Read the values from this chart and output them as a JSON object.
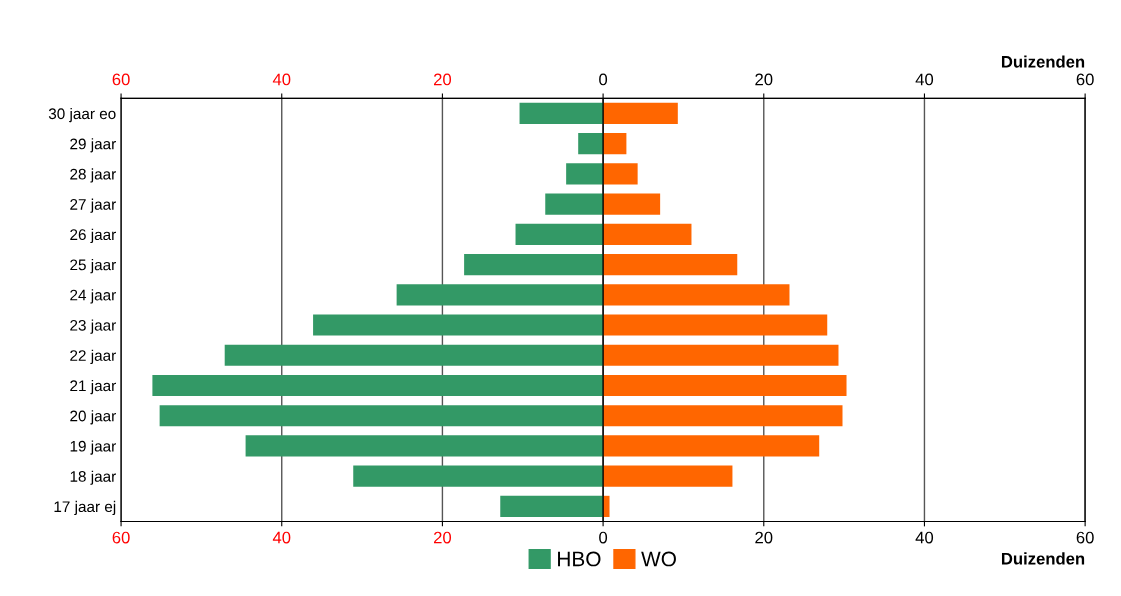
{
  "chart_data": {
    "type": "bar",
    "orientation": "horizontal",
    "stacked": true,
    "categories": [
      "30 jaar eo",
      "29 jaar",
      "28 jaar",
      "27 jaar",
      "26 jaar",
      "25 jaar",
      "24 jaar",
      "23 jaar",
      "22 jaar",
      "21 jaar",
      "20 jaar",
      "19 jaar",
      "18 jaar",
      "17 jaar ej"
    ],
    "series": [
      {
        "name": "HBO",
        "color": "#339966",
        "values": [
          -10.4,
          -3.1,
          -4.6,
          -7.2,
          -10.9,
          -17.3,
          -25.7,
          -36.1,
          -47.1,
          -56.1,
          -55.2,
          -44.5,
          -31.1,
          -12.8
        ]
      },
      {
        "name": "WO",
        "color": "#ff6600",
        "values": [
          9.3,
          2.9,
          4.3,
          7.1,
          11.0,
          16.7,
          23.2,
          27.9,
          29.3,
          30.3,
          29.8,
          26.9,
          16.1,
          0.8
        ]
      }
    ],
    "xlim": [
      -60,
      60
    ],
    "xticks": [
      {
        "value": -60,
        "label": "60"
      },
      {
        "value": -40,
        "label": "40"
      },
      {
        "value": -20,
        "label": "20"
      },
      0,
      20,
      40,
      60
    ],
    "x2lim": [
      -60,
      60
    ],
    "x2ticks": [
      {
        "value": -60,
        "label": "60"
      },
      {
        "value": -40,
        "label": "40"
      },
      {
        "value": -20,
        "label": "20"
      },
      0,
      20,
      40,
      60
    ],
    "xlabel": "Duizenden",
    "x2label": "Duizenden",
    "grid": "x",
    "legend": "bottom"
  }
}
